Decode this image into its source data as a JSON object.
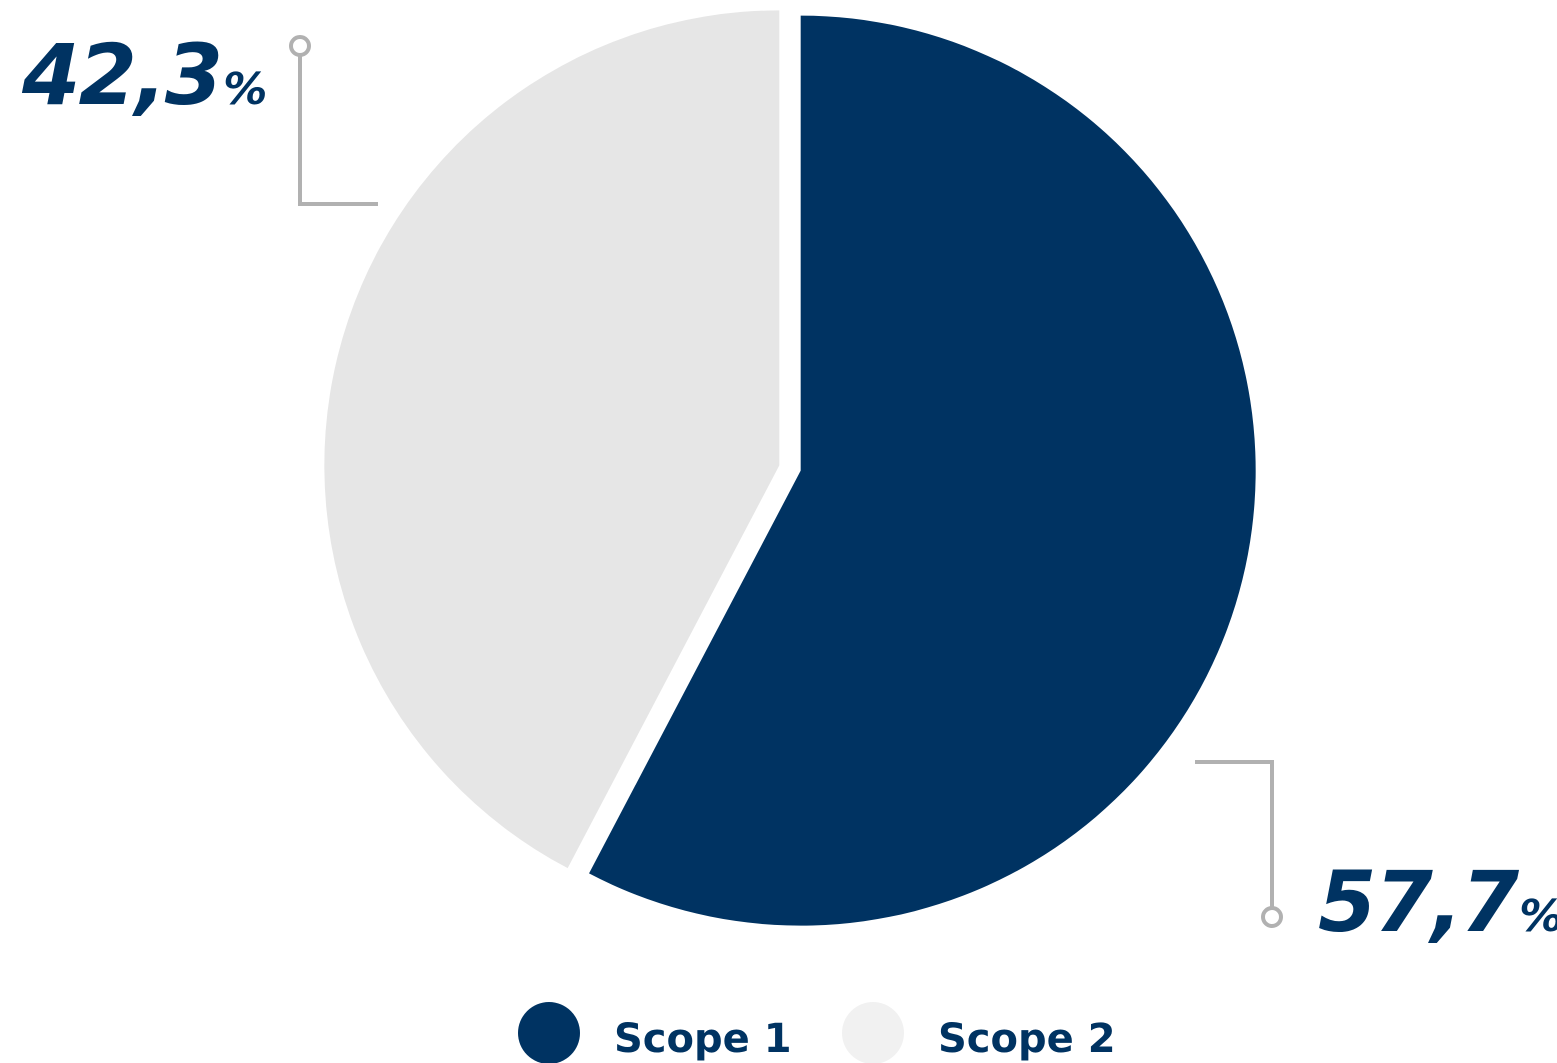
{
  "chart_data": {
    "type": "pie",
    "slices": [
      {
        "name": "Scope 1",
        "value": 57.7,
        "value_label": "57,7",
        "unit": "%",
        "color": "#003362"
      },
      {
        "name": "Scope 2",
        "value": 42.3,
        "value_label": "42,3",
        "unit": "%",
        "color": "#e6e6e6"
      }
    ],
    "legend": {
      "placement": "bottom",
      "items": [
        {
          "label": "Scope 1",
          "color": "#003362"
        },
        {
          "label": "Scope 2",
          "color": "#f1f1f1"
        }
      ]
    },
    "label_color": "#003362",
    "leader_color": "#b1b1b1"
  }
}
